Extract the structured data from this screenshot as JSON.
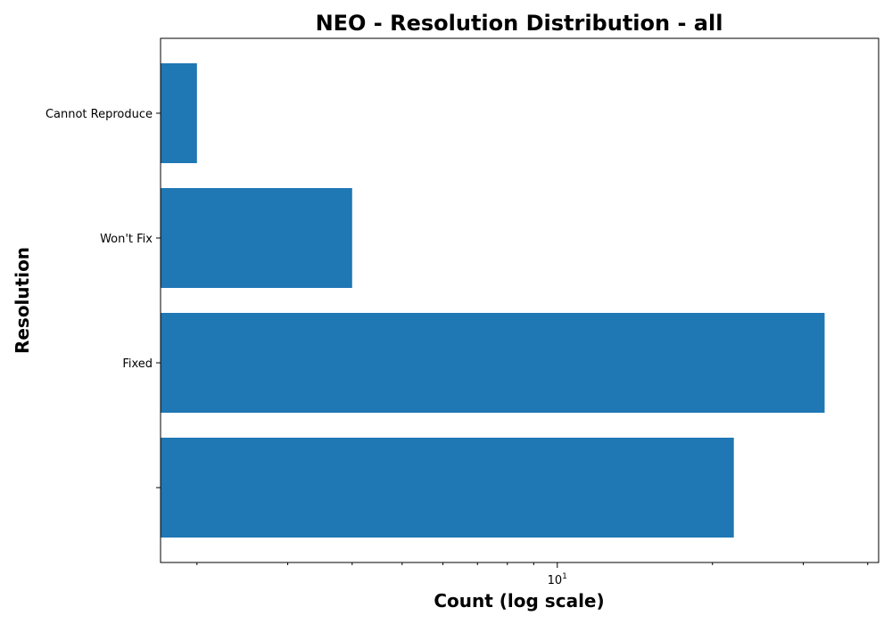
{
  "chart_data": {
    "type": "bar",
    "orientation": "horizontal",
    "title": "NEO - Resolution Distribution - all",
    "xlabel": "Count (log scale)",
    "ylabel": "Resolution",
    "x_scale": "log",
    "xlim": [
      1.7,
      42
    ],
    "x_tick_labels": [
      {
        "value": 10,
        "base": "10",
        "exponent": "1"
      }
    ],
    "categories": [
      "",
      "Fixed",
      "Won't Fix",
      "Cannot Reproduce"
    ],
    "values": [
      22,
      33,
      4,
      2
    ],
    "grid": false,
    "colors": {
      "bar": "#1f77b4"
    }
  }
}
